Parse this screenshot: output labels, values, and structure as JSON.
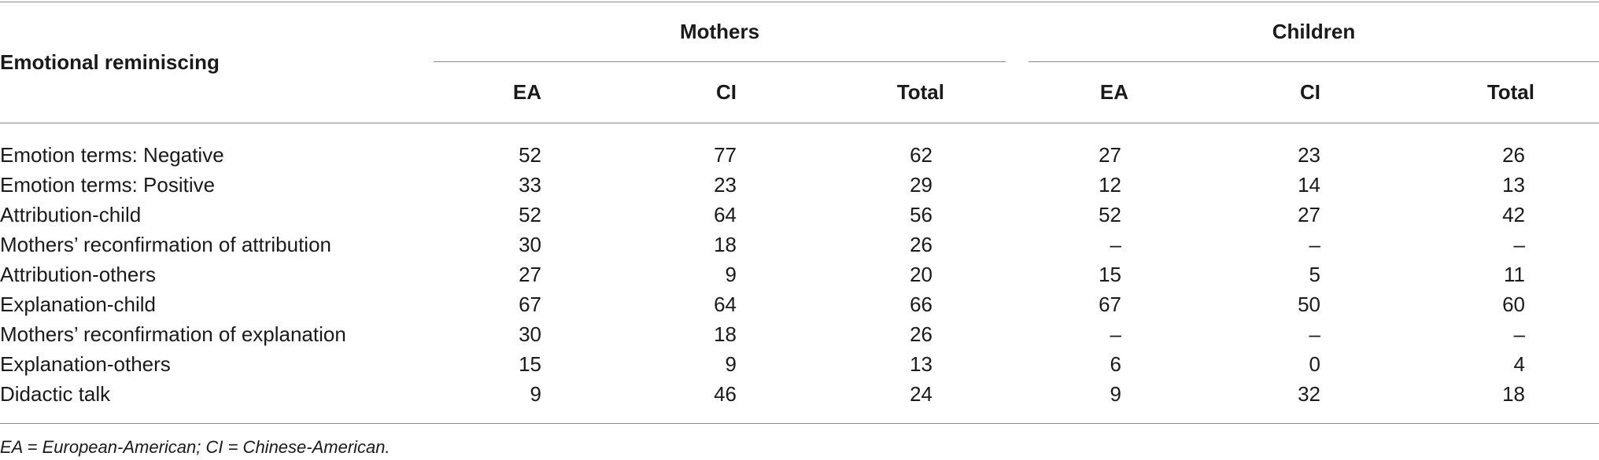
{
  "table": {
    "stub_header": "Emotional reminiscing",
    "groups": [
      {
        "label": "Mothers"
      },
      {
        "label": "Children"
      }
    ],
    "columns": [
      "EA",
      "CI",
      "Total",
      "EA",
      "CI",
      "Total"
    ],
    "rows": [
      {
        "label": "Emotion terms: Negative",
        "values": [
          "52",
          "77",
          "62",
          "27",
          "23",
          "26"
        ]
      },
      {
        "label": "Emotion terms: Positive",
        "values": [
          "33",
          "23",
          "29",
          "12",
          "14",
          "13"
        ]
      },
      {
        "label": "Attribution-child",
        "values": [
          "52",
          "64",
          "56",
          "52",
          "27",
          "42"
        ]
      },
      {
        "label": "Mothers’ reconfirmation of attribution",
        "values": [
          "30",
          "18",
          "26",
          "–",
          "–",
          "–"
        ]
      },
      {
        "label": "Attribution-others",
        "values": [
          "27",
          "9",
          "20",
          "15",
          "5",
          "11"
        ]
      },
      {
        "label": "Explanation-child",
        "values": [
          "67",
          "64",
          "66",
          "67",
          "50",
          "60"
        ]
      },
      {
        "label": "Mothers’ reconfirmation of explanation",
        "values": [
          "30",
          "18",
          "26",
          "–",
          "–",
          "–"
        ]
      },
      {
        "label": "Explanation-others",
        "values": [
          "15",
          "9",
          "13",
          "6",
          "0",
          "4"
        ]
      },
      {
        "label": "Didactic talk",
        "values": [
          "9",
          "46",
          "24",
          "9",
          "32",
          "18"
        ]
      }
    ],
    "footnote": "EA = European-American; CI = Chinese-American."
  }
}
